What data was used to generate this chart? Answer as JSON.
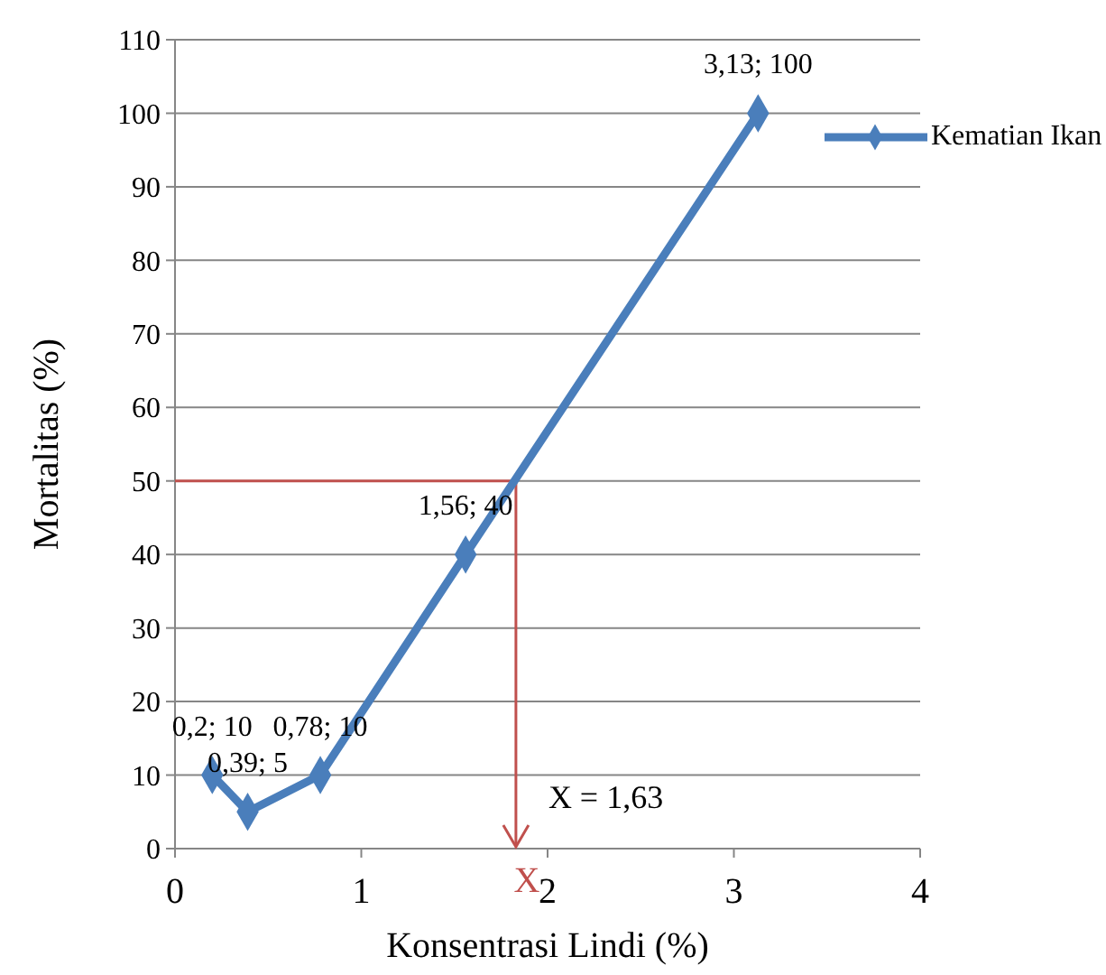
{
  "chart_data": {
    "type": "line",
    "xlabel": "Konsentrasi Lindi (%)",
    "ylabel": "Mortalitas (%)",
    "xlim": [
      0,
      4
    ],
    "xticks": [
      0,
      1,
      2,
      3,
      4
    ],
    "ylim": [
      0,
      110
    ],
    "yticks": [
      0,
      10,
      20,
      30,
      40,
      50,
      60,
      70,
      80,
      90,
      100,
      110
    ],
    "grid": "y",
    "legend": "right",
    "marker": "diamond",
    "line_style": "solid",
    "series": [
      {
        "name": "Kematian Ikan",
        "color": "#4a7ebb",
        "x": [
          0.2,
          0.39,
          0.78,
          1.56,
          3.13
        ],
        "values": [
          10,
          5,
          10,
          40,
          100
        ],
        "value_labels": [
          "0,2; 10",
          "0,39; 5",
          "0,78; 10",
          "1,56; 40",
          "3,13; 100"
        ]
      }
    ],
    "ref_lines": [
      {
        "axis": "y",
        "value": 50,
        "color": "#c0504d"
      },
      {
        "axis": "x",
        "value": 1.83,
        "label": "X",
        "color": "#c0504d"
      }
    ],
    "annotations": [
      {
        "text": "X = 1,63",
        "x": 1.83,
        "y": 5
      }
    ]
  }
}
